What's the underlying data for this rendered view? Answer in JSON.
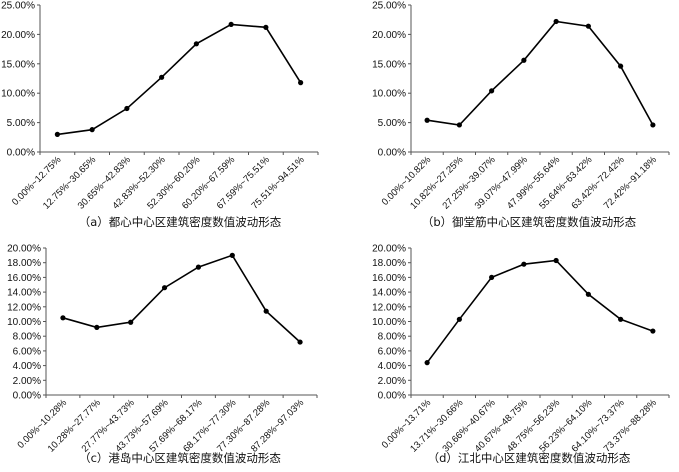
{
  "chart_data": [
    {
      "type": "line",
      "caption": "（a）都心中心区建筑密度数值波动形态",
      "categories": [
        "0.00%~12.75%",
        "12.75%~30.65%",
        "30.65%~42.83%",
        "42.83%~52.30%",
        "52.30%~60.20%",
        "60.20%~67.59%",
        "67.59%~75.51%",
        "75.51%~94.51%"
      ],
      "values": [
        3.0,
        3.8,
        7.4,
        12.7,
        18.4,
        21.7,
        21.2,
        11.8
      ],
      "yticks": [
        "0.00%",
        "5.00%",
        "10.00%",
        "15.00%",
        "20.00%",
        "25.00%"
      ],
      "ylim": [
        0,
        25
      ],
      "grid": false
    },
    {
      "type": "line",
      "caption": "（b）御堂筋中心区建筑密度数值波动形态",
      "categories": [
        "0.00%~10.82%",
        "10.82%~27.25%",
        "27.25%~39.07%",
        "39.07%~47.99%",
        "47.99%~55.64%",
        "55.64%~63.42%",
        "63.42%~72.42%",
        "72.42%~91.18%"
      ],
      "values": [
        5.4,
        4.6,
        10.4,
        15.6,
        22.2,
        21.4,
        14.6,
        4.6
      ],
      "yticks": [
        "0.00%",
        "5.00%",
        "10.00%",
        "15.00%",
        "20.00%",
        "25.00%"
      ],
      "ylim": [
        0,
        25
      ],
      "grid": false
    },
    {
      "type": "line",
      "caption": "（c）港岛中心区建筑密度数值波动形态",
      "categories": [
        "0.00%~10.28%",
        "10.28%~27.77%",
        "27.77%~43.73%",
        "43.73%~57.69%",
        "57.69%~68.17%",
        "68.17%~77.30%",
        "77.30%~87.28%",
        "87.28%~97.03%"
      ],
      "values": [
        10.5,
        9.2,
        9.9,
        14.6,
        17.4,
        19.0,
        11.4,
        7.2
      ],
      "yticks": [
        "0.00%",
        "2.00%",
        "4.00%",
        "6.00%",
        "8.00%",
        "10.00%",
        "12.00%",
        "14.00%",
        "16.00%",
        "18.00%",
        "20.00%"
      ],
      "ylim": [
        0,
        20
      ],
      "grid": false
    },
    {
      "type": "line",
      "caption": "（d）江北中心区建筑密度数值波动形态",
      "categories": [
        "0.00%~13.71%",
        "13.71%~30.66%",
        "30.66%~40.67%",
        "40.67%~48.75%",
        "48.75%~56.23%",
        "56.23%~64.10%",
        "64.10%~73.37%",
        "73.37%~88.28%"
      ],
      "values": [
        4.4,
        10.3,
        16.0,
        17.8,
        18.3,
        13.7,
        10.3,
        8.7
      ],
      "yticks": [
        "0.00%",
        "2.00%",
        "4.00%",
        "6.00%",
        "8.00%",
        "10.00%",
        "12.00%",
        "14.00%",
        "16.00%",
        "18.00%",
        "20.00%"
      ],
      "ylim": [
        0,
        20
      ],
      "grid": false
    }
  ]
}
